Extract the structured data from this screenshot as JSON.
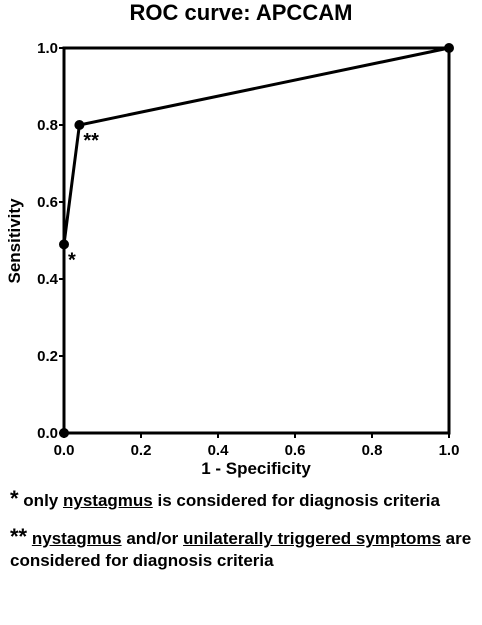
{
  "chart_data": {
    "type": "line",
    "title": "ROC curve: APCCAM",
    "xlabel": "1 - Specificity",
    "ylabel": "Sensitivity",
    "series": [
      {
        "name": "APCCAM",
        "color": "#000000",
        "x": [
          0,
          0,
          0.04,
          1
        ],
        "values": [
          0,
          0.49,
          0.8,
          1
        ],
        "point_labels": [
          null,
          "*",
          "**",
          null
        ]
      }
    ],
    "xlim": [
      0,
      1
    ],
    "ylim": [
      0,
      1
    ],
    "xticks": [
      {
        "value": 0,
        "label": "0.0"
      },
      {
        "value": 0.2,
        "label": "0.2"
      },
      {
        "value": 0.4,
        "label": "0.4"
      },
      {
        "value": 0.6,
        "label": "0.6"
      },
      {
        "value": 0.8,
        "label": "0.8"
      },
      {
        "value": 1,
        "label": "1.0"
      }
    ],
    "yticks": [
      {
        "value": 0,
        "label": "0.0"
      },
      {
        "value": 0.2,
        "label": "0.2"
      },
      {
        "value": 0.4,
        "label": "0.4"
      },
      {
        "value": 0.6,
        "label": "0.6"
      },
      {
        "value": 0.8,
        "label": "0.8"
      },
      {
        "value": 1,
        "label": "1.0"
      }
    ],
    "grid": false,
    "notes": [
      {
        "marker": "*",
        "parts": [
          {
            "text": "only",
            "underline": false
          },
          {
            "text": "nystagmus",
            "underline": true
          },
          {
            "text": "is considered for diagnosis criteria",
            "underline": false
          }
        ]
      },
      {
        "marker": "**",
        "parts": [
          {
            "text": "nystagmus",
            "underline": true
          },
          {
            "text": "and/or",
            "underline": false
          },
          {
            "text": "unilaterally triggered symptoms",
            "underline": true
          },
          {
            "text": "are considered for diagnosis criteria",
            "underline": false
          }
        ]
      }
    ]
  }
}
